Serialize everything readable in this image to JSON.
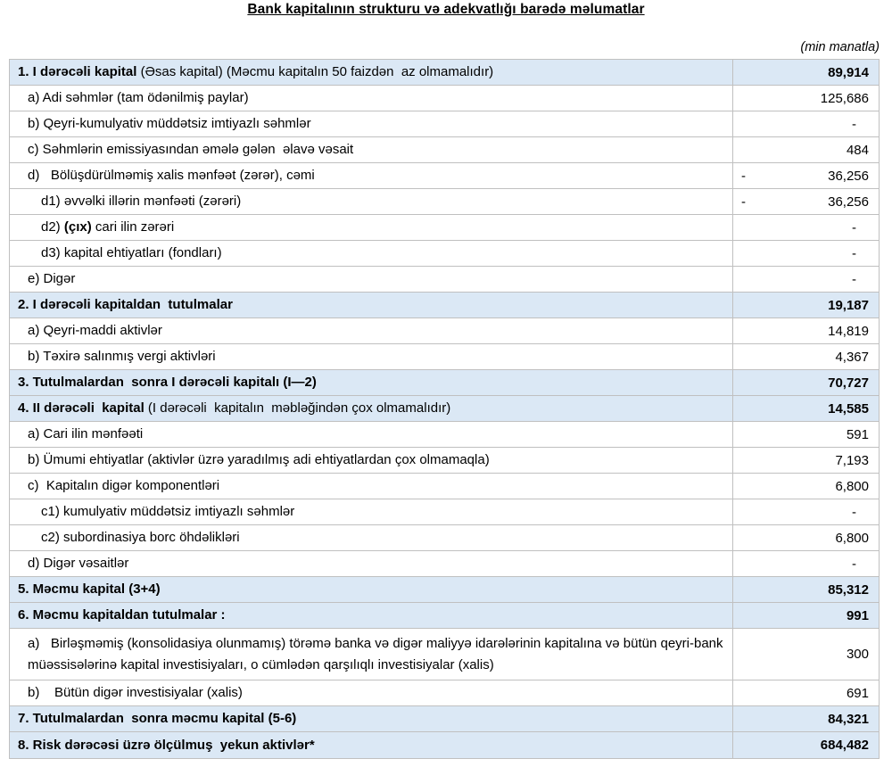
{
  "title": "Bank kapitalının strukturu və adekvatlığı barədə məlumatlar",
  "unit_note": "(min manatla)",
  "negative_sign": "-",
  "colors": {
    "section_row_background": "#dbe8f5",
    "grid_border": "#c0c0c0",
    "text": "#000000"
  },
  "table": {
    "rows": [
      {
        "section": true,
        "indent": 0,
        "value": "89,914",
        "parts": [
          {
            "text": "1. I dərəcəli kapital ",
            "bold": true
          },
          {
            "text": "(Əsas kapital) (Məcmu kapitalın 50 faizdən  az olmamalıdır)",
            "bold": false
          }
        ]
      },
      {
        "indent": 1,
        "value": "125,686",
        "parts": [
          {
            "text": "a) Adi səhmlər (tam ödənilmiş paylar)",
            "bold": false
          }
        ]
      },
      {
        "indent": 1,
        "value": "-",
        "parts": [
          {
            "text": "b) Qeyri-kumulyativ müddətsiz imtiyazlı səhmlər",
            "bold": false
          }
        ]
      },
      {
        "indent": 1,
        "value": "484",
        "parts": [
          {
            "text": "c) Səhmlərin emissiyasından əmələ gələn  əlavə vəsait",
            "bold": false
          }
        ]
      },
      {
        "indent": 1,
        "value": "36,256",
        "neg": true,
        "parts": [
          {
            "text": "d)   Bölüşdürülməmiş xalis mənfəət (zərər), cəmi",
            "bold": false
          }
        ]
      },
      {
        "indent": 2,
        "value": "36,256",
        "neg": true,
        "parts": [
          {
            "text": "d1) əvvəlki illərin mənfəəti (zərəri)",
            "bold": false
          }
        ]
      },
      {
        "indent": 2,
        "value": "-",
        "parts": [
          {
            "text": "d2) ",
            "bold": false
          },
          {
            "text": "(çıx)",
            "bold": true
          },
          {
            "text": " cari ilin zərəri",
            "bold": false
          }
        ]
      },
      {
        "indent": 2,
        "value": "-",
        "parts": [
          {
            "text": "d3) kapital ehtiyatları (fondları)",
            "bold": false
          }
        ]
      },
      {
        "indent": 1,
        "value": "-",
        "parts": [
          {
            "text": "e) Digər",
            "bold": false
          }
        ]
      },
      {
        "section": true,
        "indent": 0,
        "value": "19,187",
        "parts": [
          {
            "text": "2. I dərəcəli kapitaldan  tutulmalar",
            "bold": true
          }
        ]
      },
      {
        "indent": 1,
        "value": "14,819",
        "parts": [
          {
            "text": "a) Qeyri-maddi aktivlər",
            "bold": false
          }
        ]
      },
      {
        "indent": 1,
        "value": "4,367",
        "parts": [
          {
            "text": "b) Təxirə salınmış vergi aktivləri",
            "bold": false
          }
        ]
      },
      {
        "section": true,
        "indent": 0,
        "value": "70,727",
        "parts": [
          {
            "text": "3. Tutulmalardan  sonra I dərəcəli kapitalı (I—2)",
            "bold": true
          }
        ]
      },
      {
        "section": true,
        "indent": 0,
        "value": "14,585",
        "parts": [
          {
            "text": "4. II dərəcəli  kapital ",
            "bold": true
          },
          {
            "text": "(I dərəcəli  kapitalın  məbləğindən çox olmamalıdır)",
            "bold": false
          }
        ]
      },
      {
        "indent": 1,
        "value": "591",
        "parts": [
          {
            "text": "a) Cari ilin mənfəəti",
            "bold": false
          }
        ]
      },
      {
        "indent": 1,
        "value": "7,193",
        "parts": [
          {
            "text": "b) Ümumi ehtiyatlar (aktivlər üzrə yaradılmış adi ehtiyatlardan çox olmamaqla)",
            "bold": false
          }
        ]
      },
      {
        "indent": 1,
        "value": "6,800",
        "parts": [
          {
            "text": "c)  Kapitalın digər komponentləri",
            "bold": false
          }
        ]
      },
      {
        "indent": 2,
        "value": "-",
        "parts": [
          {
            "text": "c1) kumulyativ müddətsiz imtiyazlı səhmlər",
            "bold": false
          }
        ]
      },
      {
        "indent": 2,
        "value": "6,800",
        "parts": [
          {
            "text": "c2) subordinasiya borc öhdəlikləri",
            "bold": false
          }
        ]
      },
      {
        "indent": 1,
        "value": "-",
        "parts": [
          {
            "text": "d) Digər vəsaitlər",
            "bold": false
          }
        ]
      },
      {
        "section": true,
        "indent": 0,
        "value": "85,312",
        "parts": [
          {
            "text": "5. Məcmu kapital (3+4)",
            "bold": true
          }
        ]
      },
      {
        "section": true,
        "indent": 0,
        "value": "991",
        "parts": [
          {
            "text": "6. Məcmu kapitaldan tutulmalar :",
            "bold": true
          }
        ]
      },
      {
        "indent": 1,
        "value": "300",
        "tall": true,
        "parts": [
          {
            "text": "a)   Birləşməmiş (konsolidasiya olunmamış) törəmə banka və digər maliyyə idarələrinin kapitalına və bütün qeyri-bank müəssisələrinə kapital investisiyaları, o cümlədən qarşılıqlı investisiyalar (xalis)",
            "bold": false
          }
        ]
      },
      {
        "indent": 1,
        "value": "691",
        "parts": [
          {
            "text": "b)    Bütün digər investisiyalar (xalis)",
            "bold": false
          }
        ]
      },
      {
        "section": true,
        "indent": 0,
        "value": "84,321",
        "parts": [
          {
            "text": "7. Tutulmalardan  sonra məcmu kapital (5-6)",
            "bold": true
          }
        ]
      },
      {
        "section": true,
        "indent": 0,
        "value": "684,482",
        "parts": [
          {
            "text": "8. Risk dərəcəsi üzrə ölçülmuş  yekun aktivlər*",
            "bold": true
          }
        ]
      }
    ]
  }
}
